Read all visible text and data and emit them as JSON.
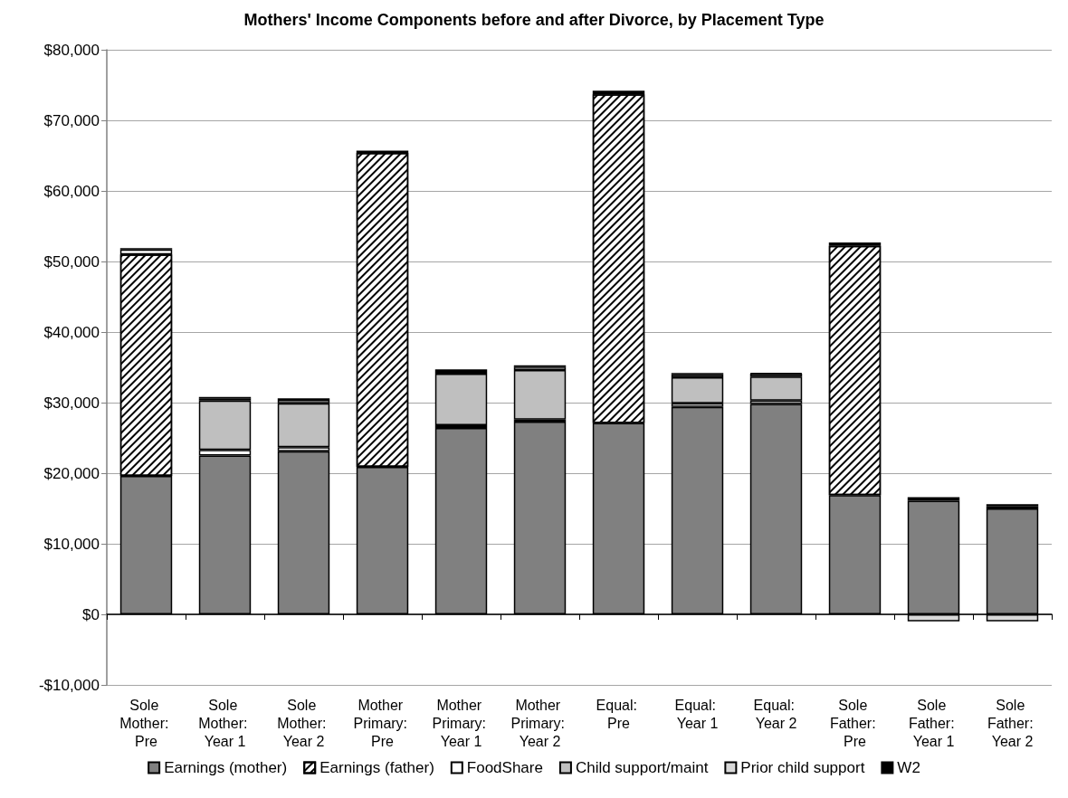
{
  "chart_data": {
    "type": "bar",
    "title": "Mothers' Income Components before and after Divorce, by Placement Type",
    "categories": [
      "Sole Mother: Pre",
      "Sole Mother: Year 1",
      "Sole Mother: Year 2",
      "Mother Primary: Pre",
      "Mother Primary: Year 1",
      "Mother Primary: Year 2",
      "Equal: Pre",
      "Equal: Year 1",
      "Equal: Year 2",
      "Sole Father: Pre",
      "Sole Father: Year 1",
      "Sole Father: Year 2"
    ],
    "stacked": true,
    "series": [
      {
        "name": "Earnings (mother)",
        "color": "#808080",
        "values": [
          19600,
          22500,
          23100,
          20900,
          26400,
          27300,
          27100,
          29400,
          29800,
          16900,
          16100,
          15000
        ]
      },
      {
        "name": "Earnings (father)",
        "color": "#000000",
        "values": [
          31400,
          null,
          null,
          44500,
          null,
          null,
          46600,
          null,
          null,
          35300,
          null,
          null
        ]
      },
      {
        "name": "FoodShare",
        "color": "#ffffff",
        "values": [
          700,
          800,
          600,
          null,
          400,
          300,
          null,
          500,
          500,
          null,
          null,
          300
        ]
      },
      {
        "name": "Child support/maint",
        "color": "#bfbfbf",
        "values": [
          null,
          7000,
          6200,
          null,
          7300,
          7000,
          null,
          3700,
          3400,
          null,
          null,
          null
        ]
      },
      {
        "name": "Prior child support",
        "color": "#d9d9d9",
        "values": [
          null,
          300,
          500,
          null,
          400,
          500,
          null,
          400,
          400,
          null,
          -1000,
          -1000
        ]
      },
      {
        "name": "W2",
        "color": "#000000",
        "values": [
          200,
          200,
          200,
          300,
          200,
          200,
          500,
          200,
          100,
          500,
          500,
          300
        ]
      }
    ],
    "ylim": [
      -10000,
      80000
    ],
    "yticks": [
      {
        "value": -10000,
        "label": "-$10,000"
      },
      {
        "value": 0,
        "label": "$0"
      },
      {
        "value": 10000,
        "label": "$10,000"
      },
      {
        "value": 20000,
        "label": "$20,000"
      },
      {
        "value": 30000,
        "label": "$30,000"
      },
      {
        "value": 40000,
        "label": "$40,000"
      },
      {
        "value": 50000,
        "label": "$50,000"
      },
      {
        "value": 60000,
        "label": "$60,000"
      },
      {
        "value": 70000,
        "label": "$70,000"
      },
      {
        "value": 80000,
        "label": "$80,000"
      }
    ],
    "grid": "y",
    "legend": "bottom"
  }
}
